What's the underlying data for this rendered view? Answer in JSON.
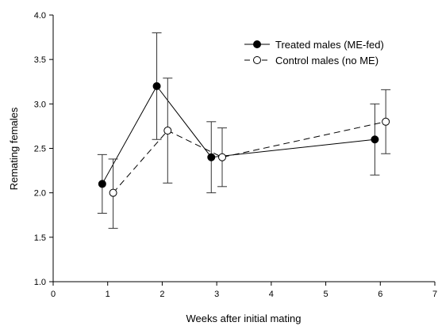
{
  "chart_data": {
    "type": "line",
    "xlabel": "Weeks after initial mating",
    "ylabel": "Remating females",
    "xlim": [
      0,
      7
    ],
    "ylim": [
      1.0,
      4.0
    ],
    "xticks": [
      0,
      1,
      2,
      3,
      4,
      5,
      6,
      7
    ],
    "yticks": [
      1.0,
      1.5,
      2.0,
      2.5,
      3.0,
      3.5,
      4.0
    ],
    "xtick_labels": [
      "0",
      "1",
      "2",
      "3",
      "4",
      "5",
      "6",
      "7"
    ],
    "ytick_labels": [
      "1.0",
      "1.5",
      "2.0",
      "2.5",
      "3.0",
      "3.5",
      "4.0"
    ],
    "grid": false,
    "legend_position": "top-right",
    "series": [
      {
        "name": "Treated males (ME-fed)",
        "marker": "filled-circle",
        "line_style": "solid",
        "color": "#000000",
        "x": [
          0.9,
          1.9,
          2.9,
          5.9
        ],
        "y": [
          2.1,
          3.2,
          2.4,
          2.6
        ],
        "error_low": [
          1.77,
          2.6,
          2.0,
          2.2
        ],
        "error_high": [
          2.43,
          3.8,
          2.8,
          3.0
        ]
      },
      {
        "name": "Control males (no ME)",
        "marker": "open-circle",
        "line_style": "dashed",
        "color": "#000000",
        "x": [
          1.1,
          2.1,
          3.1,
          6.1
        ],
        "y": [
          2.0,
          2.7,
          2.4,
          2.8
        ],
        "error_low": [
          1.6,
          2.11,
          2.07,
          2.44
        ],
        "error_high": [
          2.38,
          3.29,
          2.73,
          3.16
        ]
      }
    ]
  }
}
